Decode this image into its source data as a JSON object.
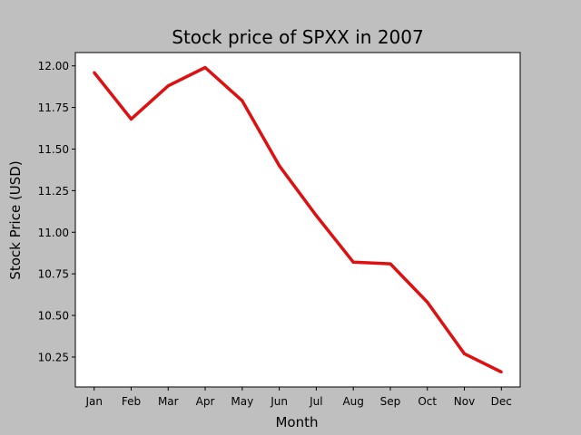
{
  "chart_data": {
    "type": "line",
    "title": "Stock price of SPXX in 2007",
    "xlabel": "Month",
    "ylabel": "Stock Price (USD)",
    "categories": [
      "Jan",
      "Feb",
      "Mar",
      "Apr",
      "May",
      "Jun",
      "Jul",
      "Aug",
      "Sep",
      "Oct",
      "Nov",
      "Dec"
    ],
    "values": [
      11.96,
      11.68,
      11.88,
      11.99,
      11.79,
      11.4,
      11.1,
      10.82,
      10.81,
      10.58,
      10.27,
      10.16
    ],
    "yticks": [
      "10.25",
      "10.50",
      "10.75",
      "11.00",
      "11.25",
      "11.50",
      "11.75",
      "12.00"
    ],
    "ylim": [
      10.07,
      12.08
    ],
    "grid": false,
    "line_color": "#dd1111",
    "background_color": "#bfbfbf",
    "plot_background_color": "#ffffff"
  }
}
